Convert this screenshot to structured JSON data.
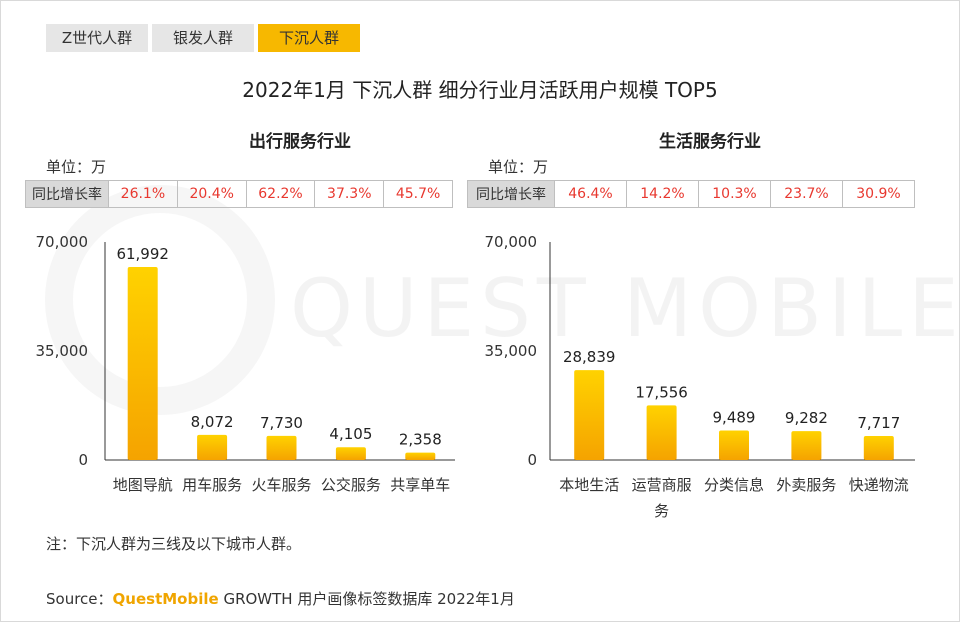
{
  "tabs": [
    {
      "label": "Z世代人群",
      "active": false
    },
    {
      "label": "银发人群",
      "active": false
    },
    {
      "label": "下沉人群",
      "active": true
    }
  ],
  "title": "2022年1月 下沉人群 细分行业月活跃用户规模 TOP5",
  "watermark": "QUEST MOBILE",
  "unit_label": "单位：万",
  "growth_header": "同比增长率",
  "chart_data": [
    {
      "type": "bar",
      "title": "出行服务行业",
      "categories": [
        "地图导航",
        "用车服务",
        "火车服务",
        "公交服务",
        "共享单车"
      ],
      "values": [
        61992,
        8072,
        7730,
        4105,
        2358
      ],
      "value_labels": [
        "61,992",
        "8,072",
        "7,730",
        "4,105",
        "2,358"
      ],
      "growth_rates": [
        "26.1%",
        "20.4%",
        "62.2%",
        "37.3%",
        "45.7%"
      ],
      "yticks": [
        "0",
        "35,000",
        "70,000"
      ],
      "ylim": [
        0,
        70000
      ],
      "bar_color": "#f7b800"
    },
    {
      "type": "bar",
      "title": "生活服务行业",
      "categories": [
        "本地生活",
        "运营商服务",
        "分类信息",
        "外卖服务",
        "快递物流"
      ],
      "values": [
        28839,
        17556,
        9489,
        9282,
        7717
      ],
      "value_labels": [
        "28,839",
        "17,556",
        "9,489",
        "9,282",
        "7,717"
      ],
      "growth_rates": [
        "46.4%",
        "14.2%",
        "10.3%",
        "23.7%",
        "30.9%"
      ],
      "yticks": [
        "0",
        "35,000",
        "70,000"
      ],
      "ylim": [
        0,
        70000
      ],
      "bar_color": "#f7b800"
    }
  ],
  "note": "注：下沉人群为三线及以下城市人群。",
  "source": {
    "prefix": "Source：",
    "brand": "QuestMobile",
    "text": " GROWTH 用户画像标签数据库 2022年1月"
  }
}
